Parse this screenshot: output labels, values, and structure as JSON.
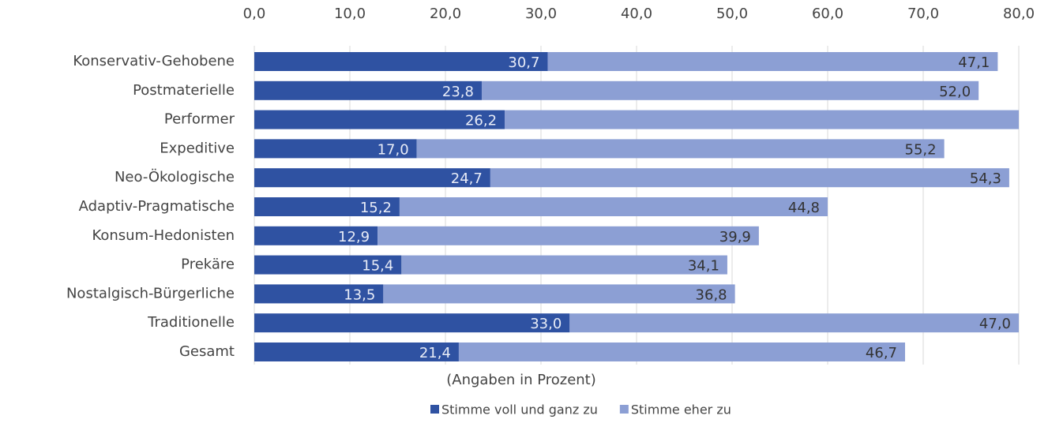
{
  "chart_data": {
    "type": "bar",
    "stacked": true,
    "xlabel": "(Angaben in Prozent)",
    "categories": [
      "Konservativ-Gehobene",
      "Postmaterielle",
      "Performer",
      "Expeditive",
      "Neo-Ökologische",
      "Adaptiv-Pragmatische",
      "Konsum-Hedonisten",
      "Prekäre",
      "Nostalgisch-Bürgerliche",
      "Traditionelle",
      "Gesamt"
    ],
    "series": [
      {
        "name": "Stimme voll und ganz zu",
        "color": "#2f52a2",
        "values": [
          30.7,
          23.8,
          26.2,
          17.0,
          24.7,
          15.2,
          12.9,
          15.4,
          13.5,
          33.0,
          21.4
        ],
        "value_labels": [
          "30,7",
          "23,8",
          "26,2",
          "17,0",
          "24,7",
          "15,2",
          "12,9",
          "15,4",
          "13,5",
          "33,0",
          "21,4"
        ]
      },
      {
        "name": "Stimme eher zu",
        "color": "#8c9fd4",
        "values": [
          47.1,
          52.0,
          55.0,
          55.2,
          54.3,
          44.8,
          39.9,
          34.1,
          36.8,
          47.0,
          46.7
        ],
        "value_labels": [
          "47,1",
          "52,0",
          null,
          "55,2",
          "54,3",
          "44,8",
          "39,9",
          "34,1",
          "36,8",
          "47,0",
          "46,7"
        ]
      }
    ],
    "xlim": [
      0,
      80
    ],
    "xticks": [
      {
        "value": 0,
        "label": "0,0"
      },
      {
        "value": 10,
        "label": "10,0"
      },
      {
        "value": 20,
        "label": "20,0"
      },
      {
        "value": 30,
        "label": "30,0"
      },
      {
        "value": 40,
        "label": "40,0"
      },
      {
        "value": 50,
        "label": "50,0"
      },
      {
        "value": 60,
        "label": "60,0"
      },
      {
        "value": 70,
        "label": "70,0"
      },
      {
        "value": 80,
        "label": "80,0"
      }
    ],
    "grid": true
  }
}
